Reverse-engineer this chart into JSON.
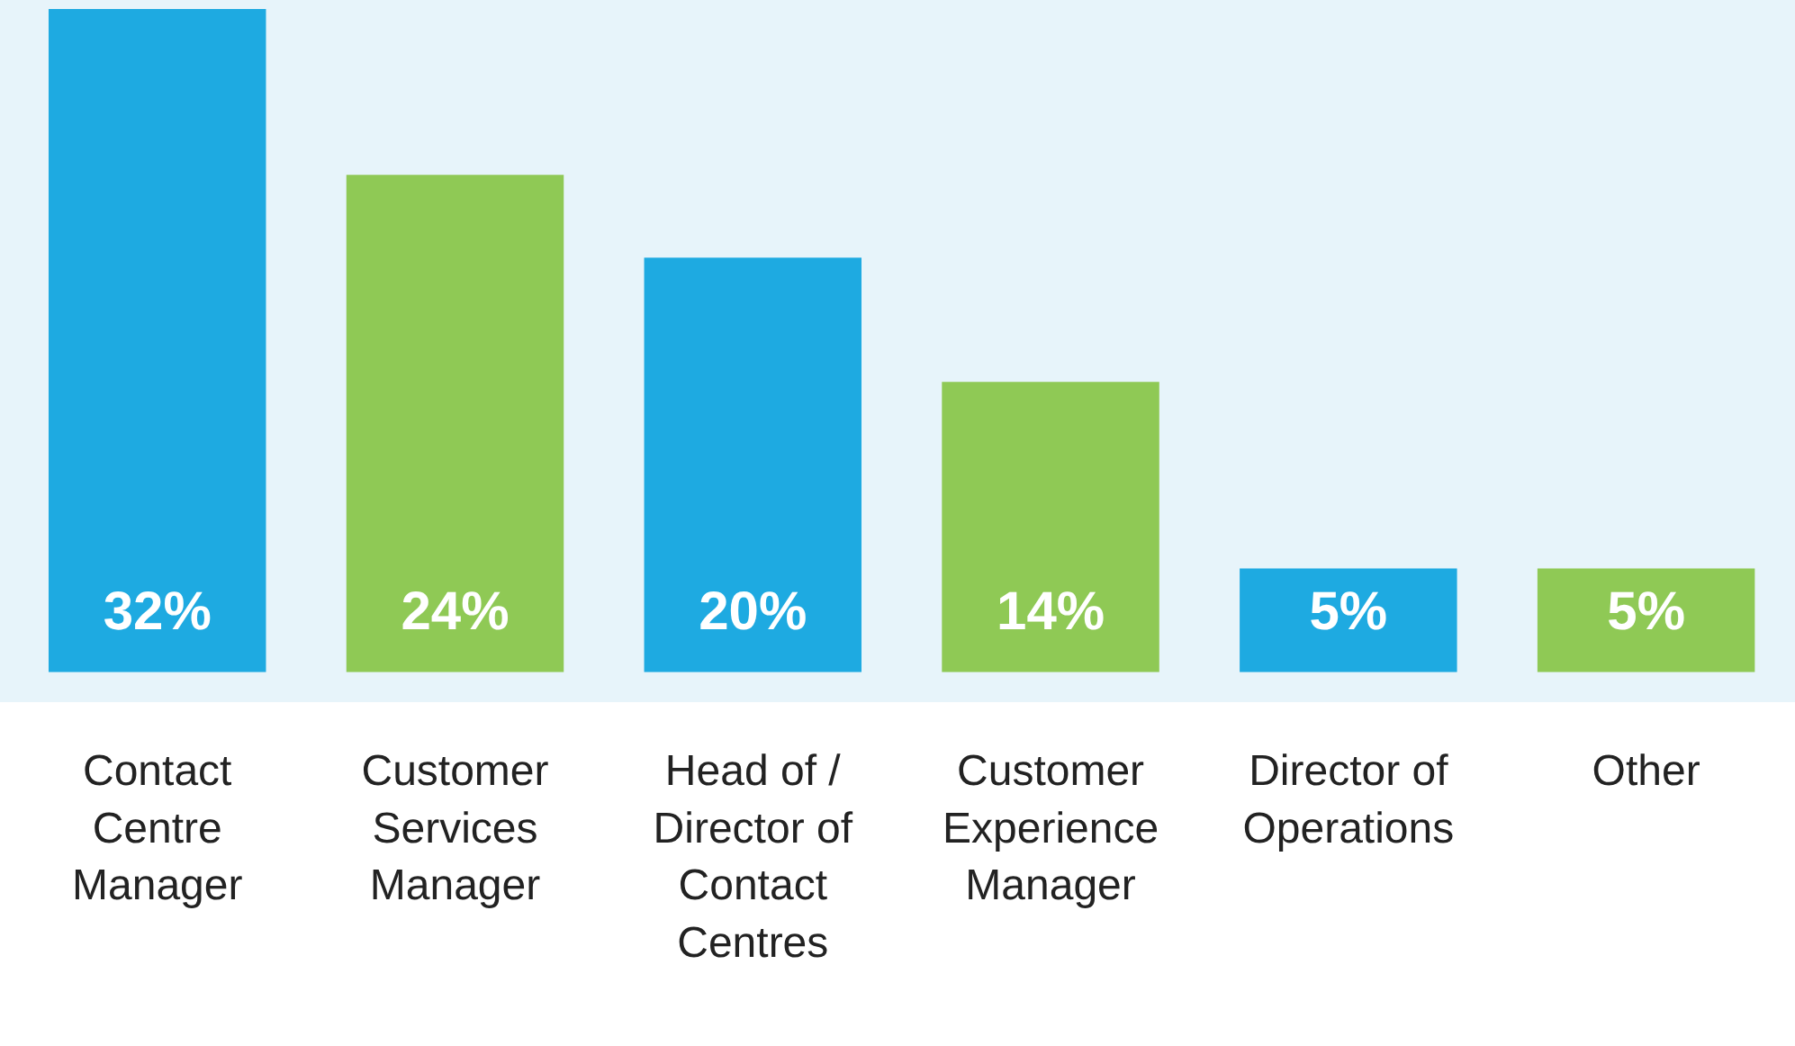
{
  "chart_data": {
    "type": "bar",
    "categories": [
      "Contact Centre Manager",
      "Customer Services Manager",
      "Head of / Director of Contact Centres",
      "Customer Experience Manager",
      "Director of Operations",
      "Other"
    ],
    "values": [
      32,
      24,
      20,
      14,
      5,
      5
    ],
    "value_labels": [
      "32%",
      "24%",
      "20%",
      "14%",
      "5%",
      "5%"
    ],
    "colors": [
      "#1eaae1",
      "#8fc955",
      "#1eaae1",
      "#8fc955",
      "#1eaae1",
      "#8fc955"
    ],
    "ylim": [
      0,
      32
    ],
    "grid": false,
    "legend": false
  }
}
